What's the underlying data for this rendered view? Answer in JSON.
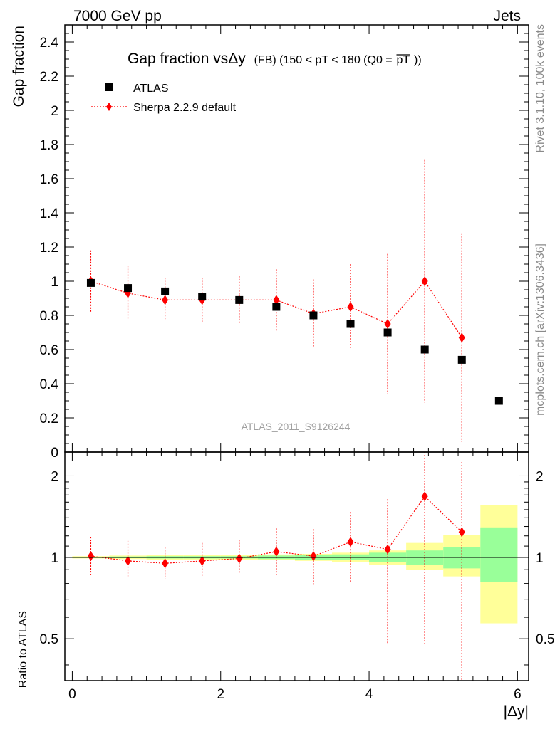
{
  "header": {
    "left": "7000 GeV pp",
    "right": "Jets"
  },
  "side_labels": {
    "rivet": "Rivet 3.1.10,  100k events",
    "mcplots": "mcplots.cern.ch [arXiv:1306.3436]"
  },
  "chart_data": {
    "type": "scatter",
    "title_main": "Gap fraction vsΔy",
    "title_sub": "(FB) (150 < pT < 180 (Q0 =",
    "title_pt": "pT",
    "title_end": "))",
    "analysis_tag": "ATLAS_2011_S9126244",
    "xlabel": "|Δy|",
    "ylabel": "Gap fraction",
    "ratio_ylabel": "Ratio to ATLAS",
    "xlim": [
      -0.1,
      6.15
    ],
    "ylim": [
      0,
      2.5
    ],
    "ratio_ylim": [
      0.35,
      2.45
    ],
    "ratio_scale": "log",
    "x_ticks": [
      "0",
      "2",
      "4",
      "6"
    ],
    "y_ticks": [
      "0",
      "0.2",
      "0.4",
      "0.6",
      "0.8",
      "1",
      "1.2",
      "1.4",
      "1.6",
      "1.8",
      "2",
      "2.2",
      "2.4"
    ],
    "ratio_ticks": [
      "0.5",
      "1",
      "2"
    ],
    "legend": {
      "position": "top-left",
      "entries": [
        "ATLAS",
        "Sherpa 2.2.9 default"
      ]
    },
    "series": [
      {
        "name": "ATLAS",
        "color": "#000000",
        "marker": "square",
        "x": [
          0.25,
          0.75,
          1.25,
          1.75,
          2.25,
          2.75,
          3.25,
          3.75,
          4.25,
          4.75,
          5.25,
          5.75
        ],
        "y": [
          0.99,
          0.96,
          0.94,
          0.91,
          0.89,
          0.85,
          0.8,
          0.75,
          0.7,
          0.6,
          0.54,
          0.3
        ]
      },
      {
        "name": "Sherpa 2.2.9 default",
        "color": "#ff0000",
        "marker": "diamond",
        "x": [
          0.25,
          0.75,
          1.25,
          1.75,
          2.25,
          2.75,
          3.25,
          3.75,
          4.25,
          4.75,
          5.25
        ],
        "y": [
          1.0,
          0.93,
          0.89,
          0.89,
          0.89,
          0.89,
          0.81,
          0.85,
          0.75,
          1.0,
          0.67
        ],
        "y_err_low": [
          0.18,
          0.15,
          0.12,
          0.13,
          0.14,
          0.18,
          0.2,
          0.24,
          0.41,
          0.71,
          0.61
        ],
        "y_err_high": [
          0.18,
          0.16,
          0.13,
          0.13,
          0.14,
          0.18,
          0.2,
          0.25,
          0.41,
          0.71,
          0.61
        ]
      }
    ],
    "ratio": {
      "x": [
        0.25,
        0.75,
        1.25,
        1.75,
        2.25,
        2.75,
        3.25,
        3.75,
        4.25,
        4.75,
        5.25
      ],
      "y": [
        1.01,
        0.97,
        0.95,
        0.97,
        0.99,
        1.05,
        1.01,
        1.14,
        1.07,
        1.68,
        1.24
      ],
      "y_low": [
        0.86,
        0.84,
        0.83,
        0.85,
        0.87,
        0.86,
        0.79,
        0.81,
        0.48,
        0.48,
        0.33
      ],
      "y_high": [
        1.19,
        1.15,
        1.09,
        1.13,
        1.16,
        1.28,
        1.27,
        1.47,
        1.64,
        2.45,
        2.25
      ]
    },
    "data_bands": {
      "x_low": [
        0.0,
        0.5,
        1.0,
        1.5,
        2.0,
        2.5,
        3.0,
        3.5,
        4.0,
        4.5,
        5.0,
        5.5
      ],
      "x_high": [
        0.5,
        1.0,
        1.5,
        2.0,
        2.5,
        3.0,
        3.5,
        4.0,
        4.5,
        5.0,
        5.5,
        6.0
      ],
      "stat_low": [
        0.995,
        0.993,
        0.99,
        0.99,
        0.99,
        0.985,
        0.98,
        0.975,
        0.96,
        0.94,
        0.91,
        0.81
      ],
      "stat_high": [
        1.005,
        1.007,
        1.01,
        1.01,
        1.01,
        1.015,
        1.02,
        1.025,
        1.04,
        1.06,
        1.09,
        1.29
      ],
      "total_low": [
        0.99,
        0.985,
        0.98,
        0.98,
        0.98,
        0.975,
        0.97,
        0.96,
        0.94,
        0.9,
        0.85,
        0.57
      ],
      "total_high": [
        1.01,
        1.015,
        1.02,
        1.02,
        1.02,
        1.025,
        1.03,
        1.04,
        1.06,
        1.13,
        1.21,
        1.56
      ]
    },
    "colors": {
      "stat_band": "#99ff99",
      "total_band": "#ffff99",
      "mc": "#ff0000",
      "data": "#000000"
    }
  }
}
